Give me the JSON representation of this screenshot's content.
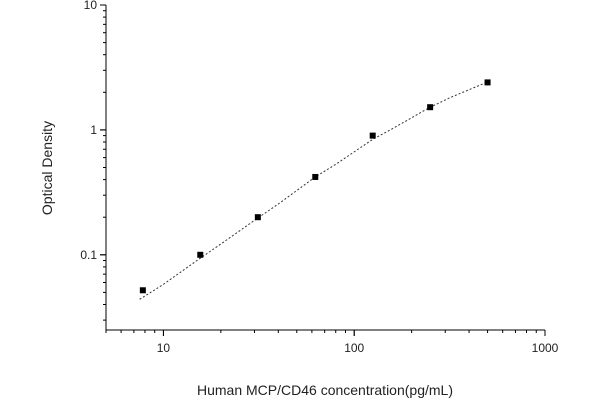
{
  "chart_data": {
    "type": "scatter",
    "title": "",
    "xlabel": "Human MCP/CD46 concentration(pg/mL)",
    "ylabel": "Optical Density",
    "x_scale": "log",
    "y_scale": "log",
    "xlim": [
      5,
      1000
    ],
    "ylim": [
      0.025,
      10
    ],
    "x_tick_labels": [
      "10",
      "100",
      "1000"
    ],
    "x_tick_values": [
      10,
      100,
      1000
    ],
    "y_tick_labels": [
      "0.1",
      "1",
      "10"
    ],
    "y_tick_values": [
      0.1,
      1,
      10
    ],
    "grid": false,
    "points": {
      "x": [
        7.8,
        15.6,
        31.25,
        62.5,
        125,
        250,
        500
      ],
      "y": [
        0.052,
        0.1,
        0.2,
        0.42,
        0.9,
        1.52,
        2.4
      ]
    },
    "fit_curve": {
      "style": "dotted",
      "x": [
        7.5,
        10,
        15.6,
        20,
        31.25,
        40,
        62.5,
        80,
        125,
        160,
        250,
        320,
        500
      ],
      "y": [
        0.044,
        0.058,
        0.094,
        0.122,
        0.197,
        0.255,
        0.42,
        0.53,
        0.84,
        1.03,
        1.52,
        1.82,
        2.42
      ]
    },
    "colors": {
      "marker": "#000000",
      "axis": "#000000",
      "curve": "#333333"
    }
  }
}
